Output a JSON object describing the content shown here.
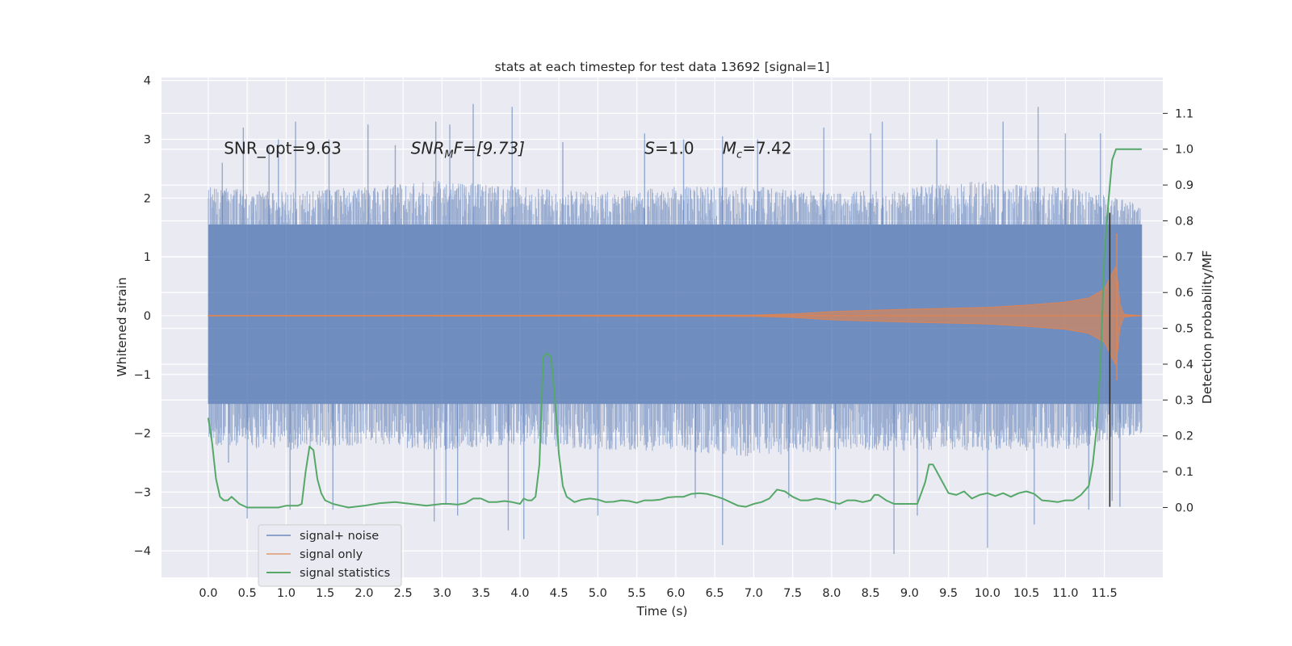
{
  "chart_data": {
    "type": "line",
    "title": "stats at each timestep for test data 13692 [signal=1]",
    "xlabel": "Time (s)",
    "ylabel_left": "Whitened strain",
    "ylabel_right": "Detection probability/MF",
    "xlim": [
      -0.6,
      12.25
    ],
    "ylim_left": [
      -4.45,
      4.05
    ],
    "ylim_right": [
      -0.195,
      1.2
    ],
    "grid": true,
    "legend_position": "lower-left",
    "x_ticks": [
      "0.0",
      "0.5",
      "1.0",
      "1.5",
      "2.0",
      "2.5",
      "3.0",
      "3.5",
      "4.0",
      "4.5",
      "5.0",
      "5.5",
      "6.0",
      "6.5",
      "7.0",
      "7.5",
      "8.0",
      "8.5",
      "9.0",
      "9.5",
      "10.0",
      "10.5",
      "11.0",
      "11.5"
    ],
    "y_ticks_left": [
      "−4",
      "−3",
      "−2",
      "−1",
      "0",
      "1",
      "2",
      "3",
      "4"
    ],
    "y_ticks_right": [
      "0.0",
      "0.1",
      "0.2",
      "0.3",
      "0.4",
      "0.5",
      "0.6",
      "0.7",
      "0.8",
      "0.9",
      "1.0",
      "1.1"
    ],
    "annotations": [
      {
        "text": "SNR_opt=9.63",
        "x": 0.2,
        "y": 2.85
      },
      {
        "text_main": "SNR",
        "text_sub": "M",
        "text_rest": "F=[9.73]",
        "x": 2.6,
        "y": 2.85
      },
      {
        "text_main": "S",
        "text_rest": "=1.0",
        "x": 5.6,
        "y": 2.85
      },
      {
        "text_main": "M",
        "text_sub": "c",
        "text_rest": "=7.42",
        "x": 6.6,
        "y": 2.85
      }
    ],
    "vertical_line": {
      "x": 11.57,
      "y_range": [
        -3.25,
        1.75
      ],
      "color": "#262626"
    },
    "series": [
      {
        "name": "signal+ noise",
        "color": "#4c72b0",
        "kind": "noise-band",
        "x_range": [
          0.0,
          11.98
        ],
        "core_band": [
          -1.5,
          1.55
        ],
        "envelope_up": [
          [
            0.0,
            2.2
          ],
          [
            1.0,
            2.1
          ],
          [
            2.0,
            2.2
          ],
          [
            3.0,
            2.3
          ],
          [
            4.0,
            2.2
          ],
          [
            5.0,
            2.1
          ],
          [
            6.0,
            2.2
          ],
          [
            7.0,
            2.2
          ],
          [
            8.0,
            2.1
          ],
          [
            9.0,
            2.2
          ],
          [
            10.0,
            2.3
          ],
          [
            11.0,
            2.2
          ],
          [
            11.98,
            1.9
          ]
        ],
        "envelope_down": [
          [
            0.0,
            -2.2
          ],
          [
            1.0,
            -2.3
          ],
          [
            2.0,
            -2.2
          ],
          [
            3.0,
            -2.3
          ],
          [
            4.0,
            -2.2
          ],
          [
            5.0,
            -2.3
          ],
          [
            6.0,
            -2.3
          ],
          [
            7.0,
            -2.4
          ],
          [
            8.0,
            -2.3
          ],
          [
            9.0,
            -2.3
          ],
          [
            10.0,
            -2.3
          ],
          [
            11.0,
            -2.3
          ],
          [
            11.98,
            -2.0
          ]
        ],
        "spikes": [
          [
            0.18,
            2.6
          ],
          [
            0.26,
            -2.5
          ],
          [
            0.45,
            3.2
          ],
          [
            0.5,
            -3.45
          ],
          [
            0.78,
            2.9
          ],
          [
            0.9,
            3.0
          ],
          [
            1.05,
            -3.3
          ],
          [
            1.12,
            3.3
          ],
          [
            1.55,
            3.0
          ],
          [
            1.6,
            -3.3
          ],
          [
            2.05,
            3.25
          ],
          [
            2.4,
            2.9
          ],
          [
            2.9,
            -3.5
          ],
          [
            2.92,
            3.3
          ],
          [
            3.05,
            -3.2
          ],
          [
            3.1,
            3.25
          ],
          [
            3.2,
            -3.4
          ],
          [
            3.4,
            3.6
          ],
          [
            3.9,
            3.55
          ],
          [
            3.85,
            -3.65
          ],
          [
            4.05,
            -3.8
          ],
          [
            4.55,
            2.95
          ],
          [
            5.0,
            -3.4
          ],
          [
            5.6,
            3.1
          ],
          [
            6.1,
            3.0
          ],
          [
            6.25,
            -3.1
          ],
          [
            6.6,
            -3.9
          ],
          [
            6.6,
            3.05
          ],
          [
            7.05,
            3.0
          ],
          [
            7.45,
            -3.1
          ],
          [
            7.9,
            3.2
          ],
          [
            8.05,
            -3.3
          ],
          [
            8.5,
            3.1
          ],
          [
            8.65,
            3.3
          ],
          [
            8.8,
            -4.05
          ],
          [
            9.1,
            -3.4
          ],
          [
            9.35,
            3.0
          ],
          [
            10.0,
            -3.95
          ],
          [
            10.2,
            3.3
          ],
          [
            10.6,
            -3.55
          ],
          [
            10.65,
            3.55
          ],
          [
            11.0,
            3.1
          ],
          [
            11.3,
            -3.3
          ],
          [
            11.45,
            3.1
          ],
          [
            11.6,
            -3.15
          ],
          [
            11.7,
            -3.25
          ]
        ]
      },
      {
        "name": "signal only",
        "color": "#dd8452",
        "kind": "chirp",
        "x_range": [
          0.0,
          11.98
        ],
        "amplitude": [
          [
            0.0,
            0.005
          ],
          [
            7.0,
            0.01
          ],
          [
            7.5,
            0.03
          ],
          [
            8.0,
            0.07
          ],
          [
            9.0,
            0.11
          ],
          [
            10.0,
            0.14
          ],
          [
            10.5,
            0.18
          ],
          [
            11.0,
            0.23
          ],
          [
            11.3,
            0.3
          ],
          [
            11.5,
            0.45
          ],
          [
            11.65,
            0.85
          ],
          [
            11.7,
            0.2
          ],
          [
            11.75,
            0.02
          ],
          [
            11.98,
            0.0
          ]
        ],
        "peak": 1.4,
        "trough": -1.1
      },
      {
        "name": "signal statistics",
        "color": "#55a868",
        "kind": "line",
        "axis": "right",
        "x": [
          0.0,
          0.05,
          0.1,
          0.15,
          0.2,
          0.25,
          0.3,
          0.35,
          0.4,
          0.5,
          0.6,
          0.7,
          0.8,
          0.9,
          1.0,
          1.1,
          1.15,
          1.2,
          1.25,
          1.3,
          1.35,
          1.4,
          1.45,
          1.5,
          1.6,
          1.7,
          1.8,
          2.0,
          2.2,
          2.4,
          2.6,
          2.8,
          3.0,
          3.1,
          3.2,
          3.3,
          3.4,
          3.5,
          3.6,
          3.7,
          3.8,
          3.9,
          4.0,
          4.05,
          4.1,
          4.15,
          4.2,
          4.25,
          4.3,
          4.35,
          4.4,
          4.45,
          4.5,
          4.55,
          4.6,
          4.7,
          4.8,
          4.9,
          5.0,
          5.1,
          5.2,
          5.3,
          5.4,
          5.5,
          5.6,
          5.7,
          5.8,
          5.9,
          6.0,
          6.1,
          6.2,
          6.3,
          6.4,
          6.5,
          6.6,
          6.7,
          6.8,
          6.9,
          7.0,
          7.1,
          7.2,
          7.3,
          7.4,
          7.5,
          7.6,
          7.7,
          7.8,
          7.9,
          8.0,
          8.1,
          8.2,
          8.3,
          8.4,
          8.5,
          8.55,
          8.6,
          8.7,
          8.8,
          8.9,
          9.0,
          9.1,
          9.15,
          9.2,
          9.25,
          9.3,
          9.35,
          9.4,
          9.45,
          9.5,
          9.6,
          9.7,
          9.8,
          9.9,
          10.0,
          10.1,
          10.2,
          10.3,
          10.4,
          10.5,
          10.6,
          10.7,
          10.8,
          10.9,
          11.0,
          11.1,
          11.2,
          11.3,
          11.35,
          11.4,
          11.45,
          11.5,
          11.55,
          11.6,
          11.65,
          11.7,
          11.8,
          11.9,
          11.98
        ],
        "y": [
          0.25,
          0.18,
          0.08,
          0.03,
          0.02,
          0.02,
          0.03,
          0.02,
          0.01,
          0.0,
          0.0,
          0.0,
          0.0,
          0.0,
          0.005,
          0.005,
          0.005,
          0.01,
          0.1,
          0.17,
          0.16,
          0.08,
          0.04,
          0.02,
          0.01,
          0.005,
          0.0,
          0.005,
          0.012,
          0.015,
          0.01,
          0.005,
          0.01,
          0.01,
          0.008,
          0.012,
          0.025,
          0.025,
          0.015,
          0.015,
          0.018,
          0.015,
          0.01,
          0.025,
          0.02,
          0.02,
          0.03,
          0.12,
          0.42,
          0.43,
          0.42,
          0.3,
          0.15,
          0.06,
          0.03,
          0.015,
          0.022,
          0.025,
          0.022,
          0.015,
          0.016,
          0.02,
          0.018,
          0.013,
          0.02,
          0.02,
          0.022,
          0.028,
          0.03,
          0.03,
          0.038,
          0.04,
          0.038,
          0.032,
          0.025,
          0.015,
          0.005,
          0.002,
          0.01,
          0.015,
          0.025,
          0.05,
          0.045,
          0.03,
          0.02,
          0.02,
          0.025,
          0.022,
          0.015,
          0.01,
          0.02,
          0.02,
          0.015,
          0.02,
          0.035,
          0.035,
          0.02,
          0.01,
          0.01,
          0.01,
          0.01,
          0.04,
          0.07,
          0.12,
          0.12,
          0.1,
          0.08,
          0.06,
          0.04,
          0.035,
          0.045,
          0.025,
          0.035,
          0.04,
          0.032,
          0.04,
          0.03,
          0.04,
          0.045,
          0.038,
          0.02,
          0.018,
          0.015,
          0.02,
          0.02,
          0.035,
          0.06,
          0.12,
          0.22,
          0.4,
          0.7,
          0.85,
          0.97,
          1.0,
          1.0,
          1.0,
          1.0,
          1.0
        ]
      }
    ]
  }
}
